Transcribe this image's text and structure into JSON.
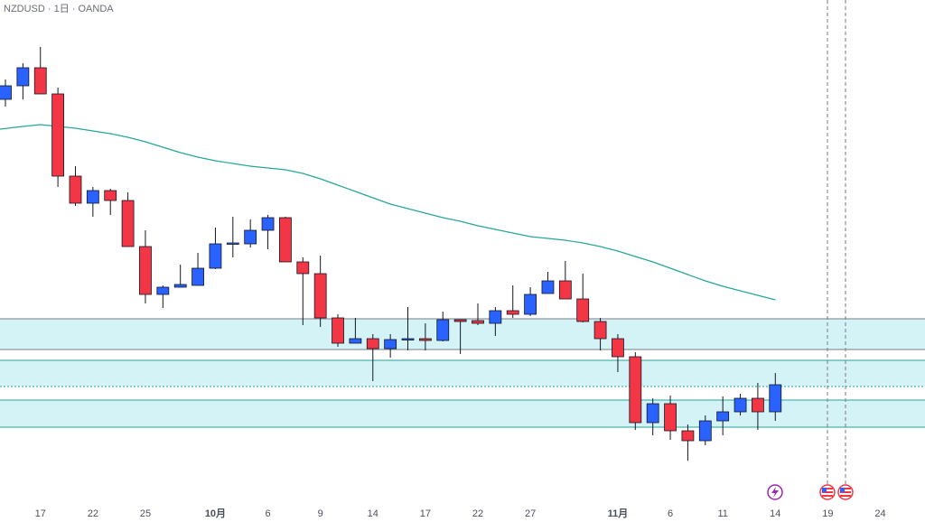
{
  "chart_data": {
    "type": "candlestick",
    "title": "NZDUSD · 1日 · OANDA",
    "categories": [
      null,
      null,
      "17",
      null,
      null,
      "22",
      null,
      null,
      "25",
      null,
      null,
      null,
      "10月",
      null,
      null,
      "6",
      null,
      null,
      "9",
      null,
      null,
      "14",
      null,
      null,
      "17",
      null,
      null,
      "22",
      null,
      null,
      "27",
      null,
      null,
      null,
      null,
      "11月",
      null,
      null,
      "6",
      null,
      null,
      "11",
      null,
      null,
      "14",
      null,
      null,
      "19",
      null,
      null,
      "24"
    ],
    "open": [
      0.664,
      0.667,
      0.671,
      0.6652,
      0.647,
      0.641,
      0.6438,
      0.6416,
      0.6314,
      0.6208,
      0.6224,
      0.6228,
      0.6266,
      0.632,
      0.632,
      0.635,
      0.6378,
      0.628,
      0.6254,
      0.6156,
      0.61,
      0.611,
      0.6088,
      0.6108,
      0.611,
      0.6106,
      0.6152,
      0.615,
      0.6144,
      0.6172,
      0.6164,
      0.621,
      0.6238,
      0.6198,
      0.6148,
      0.611,
      0.607,
      0.5924,
      0.5966,
      0.5906,
      0.5884,
      0.5928,
      0.5948,
      0.5978,
      0.5948,
      null,
      null,
      null,
      null,
      null,
      null
    ],
    "high": [
      0.6684,
      0.672,
      0.6756,
      0.6666,
      0.6492,
      0.6446,
      0.6442,
      0.6434,
      0.635,
      0.6228,
      0.6274,
      0.63,
      0.6356,
      0.638,
      0.6374,
      0.6384,
      0.638,
      0.629,
      0.6294,
      0.6164,
      0.6156,
      0.612,
      0.612,
      0.618,
      0.6144,
      0.617,
      0.6152,
      0.6188,
      0.618,
      0.6228,
      0.6224,
      0.6258,
      0.6282,
      0.6254,
      0.6156,
      0.612,
      0.608,
      0.5978,
      0.5984,
      0.592,
      0.594,
      0.5982,
      0.5988,
      0.6012,
      0.6034,
      null,
      null,
      null,
      null,
      null,
      null
    ],
    "low": [
      0.6624,
      0.664,
      0.6652,
      0.6446,
      0.6404,
      0.638,
      0.6384,
      0.6314,
      0.6188,
      0.6178,
      0.6224,
      0.6228,
      0.6264,
      0.629,
      0.6312,
      0.6308,
      0.628,
      0.614,
      0.6136,
      0.6092,
      0.61,
      0.6016,
      0.6068,
      0.6084,
      0.6084,
      0.6104,
      0.6076,
      0.614,
      0.6116,
      0.6156,
      0.616,
      0.621,
      0.6198,
      0.6146,
      0.6084,
      0.6036,
      0.5908,
      0.5896,
      0.5886,
      0.584,
      0.5874,
      0.5896,
      0.594,
      0.5908,
      0.5928,
      null,
      null,
      null,
      null,
      null,
      null
    ],
    "close": [
      0.667,
      0.671,
      0.6652,
      0.647,
      0.641,
      0.6438,
      0.6416,
      0.6314,
      0.6208,
      0.6224,
      0.623,
      0.6266,
      0.632,
      0.6322,
      0.635,
      0.6378,
      0.628,
      0.6254,
      0.6156,
      0.61,
      0.611,
      0.6088,
      0.6108,
      0.611,
      0.6106,
      0.6152,
      0.6148,
      0.6144,
      0.6172,
      0.6164,
      0.6208,
      0.6238,
      0.6198,
      0.6148,
      0.611,
      0.607,
      0.5924,
      0.5966,
      0.5906,
      0.5884,
      0.5928,
      0.5948,
      0.5978,
      0.5948,
      0.6008,
      null,
      null,
      null,
      null,
      null,
      null
    ],
    "up_color": "#2962ff",
    "down_color": "#f23645",
    "ma": {
      "color": "#26a69a",
      "values": [
        0.6574,
        0.658,
        0.6584,
        0.658,
        0.6576,
        0.657,
        0.6564,
        0.6556,
        0.6546,
        0.6534,
        0.6522,
        0.6512,
        0.6504,
        0.6498,
        0.6492,
        0.6488,
        0.6484,
        0.6476,
        0.6464,
        0.645,
        0.6436,
        0.6422,
        0.6408,
        0.6398,
        0.6388,
        0.6378,
        0.637,
        0.636,
        0.6352,
        0.6344,
        0.6336,
        0.6332,
        0.6328,
        0.6322,
        0.6314,
        0.6304,
        0.6292,
        0.628,
        0.6266,
        0.6252,
        0.6238,
        0.6226,
        0.6216,
        0.6206,
        0.6196,
        null,
        null,
        null,
        null,
        null,
        null
      ]
    },
    "zones": [
      {
        "from": 0.6154,
        "to": 0.6086,
        "color": "#d4f3f7",
        "border": "#787b86"
      },
      {
        "from": 0.6062,
        "to": 0.6004,
        "color": "#d4f3f7",
        "border": "#26a69a"
      },
      {
        "from": 0.5974,
        "to": 0.5914,
        "color": "#d4f3f7",
        "border": "#26a69a"
      }
    ],
    "ylim": [
      0.575,
      0.686
    ]
  }
}
